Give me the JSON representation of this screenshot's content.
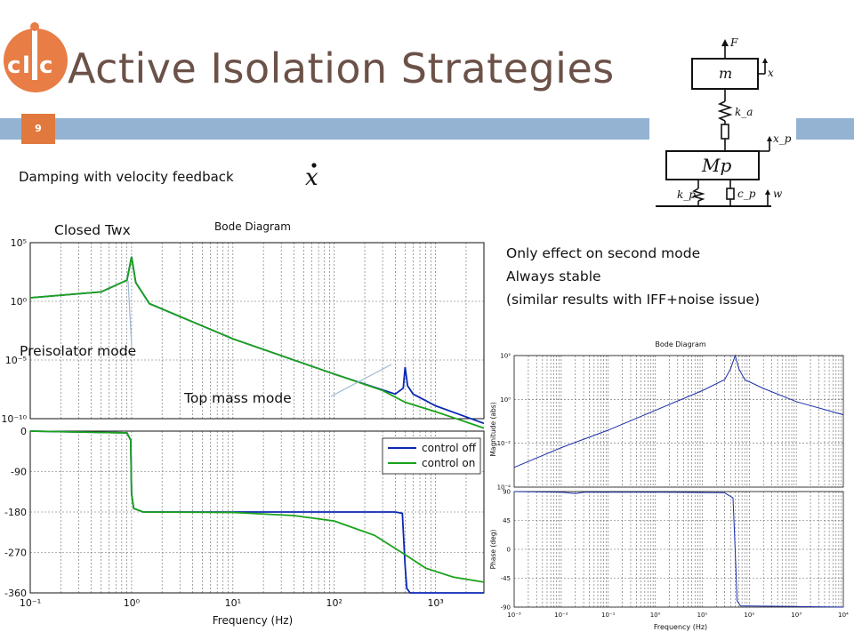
{
  "slide": {
    "title": "Active Isolation Strategies",
    "page_number": "9",
    "subtitle": "Damping with velocity feedback",
    "notes": [
      "Only effect on second mode",
      "Always stable",
      "(similar results with IFF+noise issue)"
    ],
    "labels": {
      "closed": "Closed Twx",
      "preisolator": "Preisolator mode",
      "topmass": "Top mass mode"
    },
    "colors": {
      "title": "#6b5148",
      "bar": "#94b3d3",
      "page_badge": "#e1793e",
      "logo": "#e87d45"
    }
  },
  "logo": {
    "letters": "CLIC"
  },
  "mechanics_diagram": {
    "force_label": "F",
    "top_mass": "m",
    "top_disp": "x",
    "spring_a": "k_a",
    "base_mass": "Mp",
    "base_disp": "x_p",
    "spring_p": "k_p",
    "damper_p": "c_p",
    "ground_disp": "w"
  },
  "chart_data": [
    {
      "type": "line",
      "title": "Bode Diagram",
      "xlabel": "Frequency (Hz)",
      "x_scale": "log",
      "xlim": [
        0.1,
        3000
      ],
      "x_ticks": [
        "10⁻¹",
        "10⁰",
        "10¹",
        "10²",
        "10³"
      ],
      "legend": {
        "placement": "right",
        "entries": [
          "control off",
          "control on"
        ]
      },
      "series_colors": [
        "#0a28b4",
        "#1aa21a"
      ],
      "magnitude": {
        "y_scale": "log",
        "ylim_exp": [
          -10,
          5
        ],
        "y_ticks": [
          "10⁵",
          "10⁰",
          "10⁻⁵",
          "10⁻¹⁰"
        ],
        "series": [
          {
            "name": "control off",
            "points": [
              [
                0.1,
                0.3
              ],
              [
                0.5,
                0.8
              ],
              [
                0.9,
                1.8
              ],
              [
                1.0,
                3.8
              ],
              [
                1.1,
                1.6
              ],
              [
                1.5,
                -0.2
              ],
              [
                10,
                -3.2
              ],
              [
                100,
                -6.2
              ],
              [
                400,
                -7.9
              ],
              [
                480,
                -7.4
              ],
              [
                500,
                -5.6
              ],
              [
                530,
                -7.2
              ],
              [
                600,
                -7.9
              ],
              [
                1000,
                -8.9
              ],
              [
                3000,
                -10.4
              ]
            ]
          },
          {
            "name": "control on",
            "points": [
              [
                0.1,
                0.3
              ],
              [
                0.5,
                0.8
              ],
              [
                0.9,
                1.8
              ],
              [
                1.0,
                3.8
              ],
              [
                1.1,
                1.6
              ],
              [
                1.5,
                -0.2
              ],
              [
                10,
                -3.2
              ],
              [
                100,
                -6.2
              ],
              [
                300,
                -7.6
              ],
              [
                500,
                -8.6
              ],
              [
                1000,
                -9.4
              ],
              [
                3000,
                -10.8
              ]
            ]
          }
        ]
      },
      "phase": {
        "ylim": [
          -360,
          0
        ],
        "y_ticks": [
          "0",
          "-90",
          "-180",
          "-270",
          "-360"
        ],
        "series": [
          {
            "name": "control off",
            "points": [
              [
                0.1,
                0
              ],
              [
                0.9,
                -4
              ],
              [
                0.98,
                -20
              ],
              [
                1.0,
                -140
              ],
              [
                1.05,
                -172
              ],
              [
                1.3,
                -180
              ],
              [
                400,
                -180
              ],
              [
                470,
                -183
              ],
              [
                500,
                -300
              ],
              [
                520,
                -350
              ],
              [
                560,
                -360
              ],
              [
                3000,
                -360
              ]
            ]
          },
          {
            "name": "control on",
            "points": [
              [
                0.1,
                0
              ],
              [
                0.9,
                -4
              ],
              [
                0.98,
                -20
              ],
              [
                1.0,
                -140
              ],
              [
                1.05,
                -172
              ],
              [
                1.3,
                -180
              ],
              [
                10,
                -181
              ],
              [
                40,
                -188
              ],
              [
                100,
                -200
              ],
              [
                250,
                -232
              ],
              [
                500,
                -275
              ],
              [
                800,
                -305
              ],
              [
                1500,
                -325
              ],
              [
                3000,
                -336
              ]
            ]
          }
        ]
      }
    },
    {
      "type": "line",
      "title": "Bode Diagram",
      "xlabel": "Frequency (Hz)",
      "x_scale": "log",
      "xlim": [
        0.001,
        10000
      ],
      "x_ticks": [
        "10⁻³",
        "10⁻²",
        "10⁻¹",
        "10⁰",
        "10¹",
        "10²",
        "10³",
        "10⁴"
      ],
      "magnitude": {
        "ylabel": "Magnitude (abs)",
        "y_scale": "log",
        "ylim_exp": [
          -4,
          2
        ],
        "y_ticks": [
          "10²",
          "10⁰",
          "10⁻²",
          "10⁻⁴"
        ],
        "series": [
          {
            "name": "",
            "color": "#1a2ea8",
            "points": [
              [
                0.001,
                -3.1
              ],
              [
                0.01,
                -2.2
              ],
              [
                0.1,
                -1.4
              ],
              [
                1,
                -0.5
              ],
              [
                10,
                0.4
              ],
              [
                30,
                0.9
              ],
              [
                40,
                1.4
              ],
              [
                50,
                2.0
              ],
              [
                60,
                1.4
              ],
              [
                80,
                0.9
              ],
              [
                200,
                0.5
              ],
              [
                1000,
                -0.1
              ],
              [
                10000,
                -0.7
              ]
            ]
          }
        ]
      },
      "phase": {
        "ylabel": "Phase (deg)",
        "ylim": [
          -90,
          90
        ],
        "y_ticks": [
          "90",
          "45",
          "0",
          "-45",
          "-90"
        ],
        "series": [
          {
            "name": "",
            "color": "#1a2ea8",
            "points": [
              [
                0.001,
                90
              ],
              [
                0.01,
                89
              ],
              [
                0.02,
                87
              ],
              [
                0.03,
                89
              ],
              [
                1,
                89
              ],
              [
                30,
                88
              ],
              [
                45,
                80
              ],
              [
                50,
                0
              ],
              [
                55,
                -80
              ],
              [
                65,
                -88
              ],
              [
                10000,
                -90
              ]
            ]
          }
        ]
      }
    }
  ]
}
